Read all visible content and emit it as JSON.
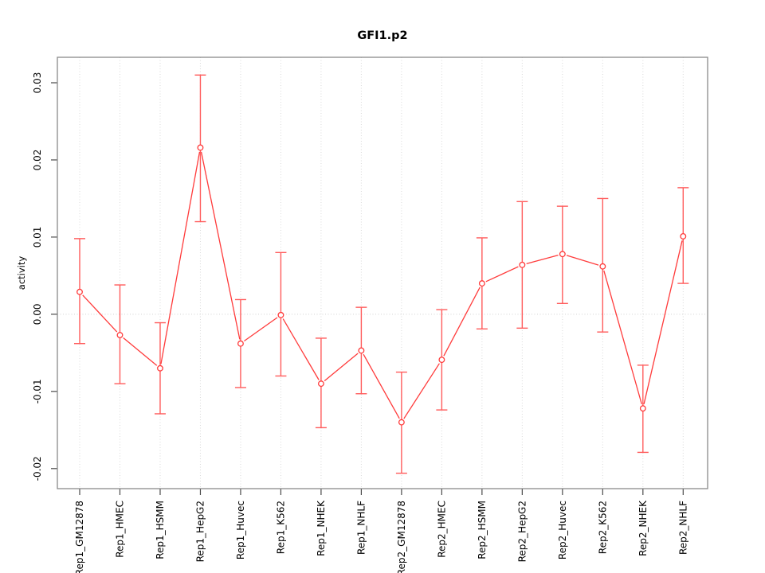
{
  "title": "GFI1.p2",
  "chart_data": {
    "type": "line",
    "title": "GFI1.p2",
    "xlabel": "",
    "ylabel": "activity",
    "marker": "open-circle",
    "legend": "none",
    "categories": [
      "Rep1_GM12878",
      "Rep1_HMEC",
      "Rep1_HSMM",
      "Rep1_HepG2",
      "Rep1_Huvec",
      "Rep1_K562",
      "Rep1_NHEK",
      "Rep1_NHLF",
      "Rep2_GM12878",
      "Rep2_HMEC",
      "Rep2_HSMM",
      "Rep2_HepG2",
      "Rep2_Huvec",
      "Rep2_K562",
      "Rep2_NHEK",
      "Rep2_NHLF"
    ],
    "series": [
      {
        "name": "GFI1.p2 activity",
        "values": [
          0.0029,
          -0.0027,
          -0.007,
          0.0216,
          -0.0038,
          -0.0001,
          -0.009,
          -0.0047,
          -0.014,
          -0.0059,
          0.004,
          0.0064,
          0.0078,
          0.0062,
          -0.0122,
          0.0101
        ],
        "err_high": [
          0.0098,
          0.0038,
          -0.0011,
          0.031,
          0.0019,
          0.008,
          -0.0031,
          0.0009,
          -0.0075,
          0.0006,
          0.0099,
          0.0146,
          0.014,
          0.015,
          -0.0066,
          0.0164
        ],
        "err_low": [
          -0.0038,
          -0.009,
          -0.0129,
          0.012,
          -0.0095,
          -0.008,
          -0.0147,
          -0.0103,
          -0.0206,
          -0.0124,
          -0.0019,
          -0.0018,
          0.0014,
          -0.0023,
          -0.0179,
          0.004
        ]
      }
    ],
    "yticks": [
      -0.02,
      -0.01,
      0,
      0.01,
      0.02,
      0.03
    ],
    "ytick_labels": [
      "-0.02",
      "-0.01",
      "0.00",
      "0.01",
      "0.02",
      "0.03"
    ],
    "ylim": [
      -0.0226,
      0.0333
    ],
    "grid": {
      "vertical_at_categories": true,
      "horizontal_at_zero": true,
      "style": "dotted"
    },
    "colors": {
      "series": "#ff3b3b",
      "error_bar": "#ff5c5c",
      "grid": "#dadada",
      "zero_line": "#d2d2d2",
      "frame": "#8a8a8a",
      "tick": "#4a4a4a",
      "text": "#000000"
    }
  }
}
